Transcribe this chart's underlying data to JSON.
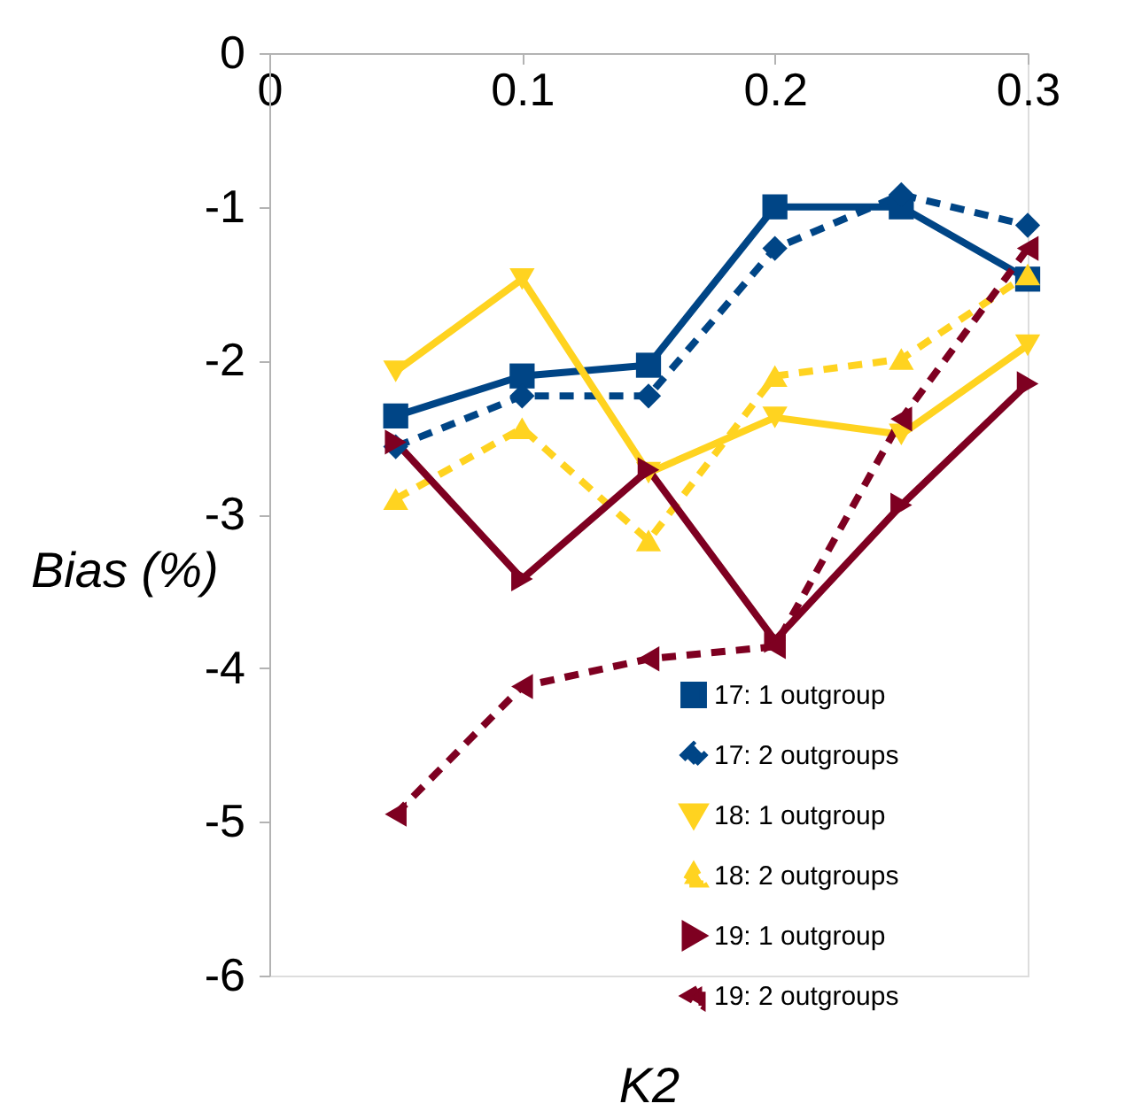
{
  "chart_data": {
    "type": "line",
    "xlabel": "K2",
    "ylabel": "Bias (%)",
    "x": [
      0.05,
      0.1,
      0.15,
      0.2,
      0.25,
      0.3
    ],
    "xlim": [
      0,
      0.3
    ],
    "xticks": [
      0,
      0.1,
      0.2,
      0.3
    ],
    "ylim": [
      -6,
      0
    ],
    "yticks": [
      -6,
      -5,
      -4,
      -3,
      -2,
      -1,
      0
    ],
    "grid": false,
    "legend": "bottom right",
    "series": [
      {
        "name": "17: 1 outgroup",
        "color": "#004586",
        "line_style": "solid",
        "marker": "square",
        "values": [
          -2.36,
          -2.1,
          -2.03,
          -1.0,
          -1.0,
          -1.47
        ]
      },
      {
        "name": "17: 2 outgroups",
        "color": "#004586",
        "line_style": "dashed",
        "marker": "diamond",
        "values": [
          -2.56,
          -2.23,
          -2.23,
          -1.27,
          -0.92,
          -1.12
        ]
      },
      {
        "name": "18: 1 outgroup",
        "color": "#ffd320",
        "line_style": "solid",
        "marker": "triangle-down",
        "values": [
          -2.07,
          -1.47,
          -2.73,
          -2.37,
          -2.48,
          -1.9
        ]
      },
      {
        "name": "18: 2 outgroups",
        "color": "#ffd320",
        "line_style": "dashed",
        "marker": "triangle-up",
        "values": [
          -2.9,
          -2.44,
          -3.17,
          -2.1,
          -1.99,
          -1.44
        ]
      },
      {
        "name": "19: 1 outgroup",
        "color": "#7e0021",
        "line_style": "solid",
        "marker": "triangle-right",
        "values": [
          -2.53,
          -3.42,
          -2.71,
          -3.82,
          -2.94,
          -2.15
        ]
      },
      {
        "name": "19: 2 outgroups",
        "color": "#7e0021",
        "line_style": "dashed",
        "marker": "triangle-left",
        "values": [
          -4.95,
          -4.12,
          -3.94,
          -3.86,
          -2.38,
          -1.27
        ]
      }
    ]
  }
}
